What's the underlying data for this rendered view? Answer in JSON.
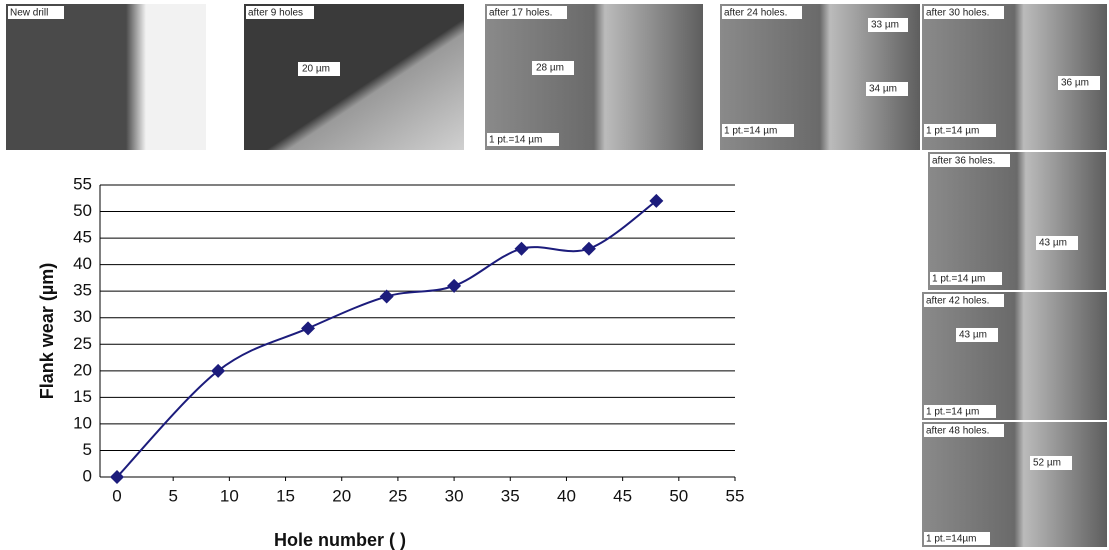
{
  "chart_data": {
    "type": "line",
    "x_label": "Hole number ( )",
    "y_label": "Flank wear (µm)",
    "x": [
      0,
      9,
      17,
      24,
      30,
      36,
      42,
      48
    ],
    "values": [
      0,
      20,
      28,
      34,
      36,
      43,
      43,
      52
    ],
    "color": "#1c1c7c",
    "xlim": [
      0,
      55
    ],
    "xticks": [
      0,
      5,
      10,
      15,
      20,
      25,
      30,
      35,
      40,
      45,
      50,
      55
    ],
    "ylim": [
      0,
      55
    ],
    "yticks": [
      0,
      5,
      10,
      15,
      20,
      25,
      30,
      35,
      40,
      45,
      50,
      55
    ],
    "grid": true
  },
  "micrographs": [
    {
      "caption": "New drill"
    },
    {
      "caption": "after 9 holes",
      "labels": [
        "20 µm"
      ]
    },
    {
      "caption": "after 17 holes.",
      "labels": [
        "28 µm"
      ],
      "scale": "1 pt.=14 µm"
    },
    {
      "caption": "after 24 holes.",
      "labels": [
        "33 µm",
        "34 µm"
      ],
      "scale": "1 pt.=14 µm"
    },
    {
      "caption": "after 30 holes.",
      "labels": [
        "36 µm"
      ],
      "scale": "1 pt.=14 µm"
    },
    {
      "caption": "after 36 holes.",
      "labels": [
        "43 µm"
      ],
      "scale": "1 pt.=14 µm"
    },
    {
      "caption": "after 42 holes.",
      "labels": [
        "43 µm"
      ],
      "scale": "1 pt.=14 µm"
    },
    {
      "caption": "after 48 holes.",
      "labels": [
        "52 µm"
      ],
      "scale": "1 pt.=14µm"
    }
  ]
}
